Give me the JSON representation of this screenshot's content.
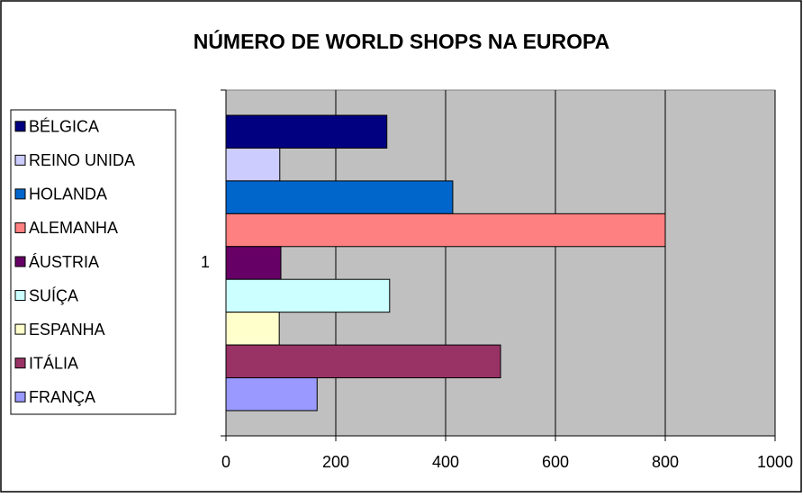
{
  "chart_data": {
    "type": "bar",
    "orientation": "horizontal",
    "title": "NÚMERO DE WORLD SHOPS NA EUROPA",
    "categories": [
      "1"
    ],
    "series": [
      {
        "name": "BÉLGICA",
        "color": "#000080",
        "values": [
          293
        ]
      },
      {
        "name": "REINO UNIDA",
        "color": "#ccccff",
        "values": [
          98
        ]
      },
      {
        "name": "HOLANDA",
        "color": "#0066cc",
        "values": [
          413
        ]
      },
      {
        "name": "ALEMANHA",
        "color": "#ff8080",
        "values": [
          800
        ]
      },
      {
        "name": "ÁUSTRIA",
        "color": "#660066",
        "values": [
          100
        ]
      },
      {
        "name": "SUÍÇA",
        "color": "#ccffff",
        "values": [
          298
        ]
      },
      {
        "name": "ESPANHA",
        "color": "#ffffcc",
        "values": [
          97
        ]
      },
      {
        "name": "ITÁLIA",
        "color": "#993366",
        "values": [
          500
        ]
      },
      {
        "name": "FRANÇA",
        "color": "#9999ff",
        "values": [
          166
        ]
      }
    ],
    "xlim": [
      0,
      1000
    ],
    "xticks": [
      0,
      200,
      400,
      600,
      800,
      1000
    ],
    "grid": true,
    "legend": "left"
  }
}
